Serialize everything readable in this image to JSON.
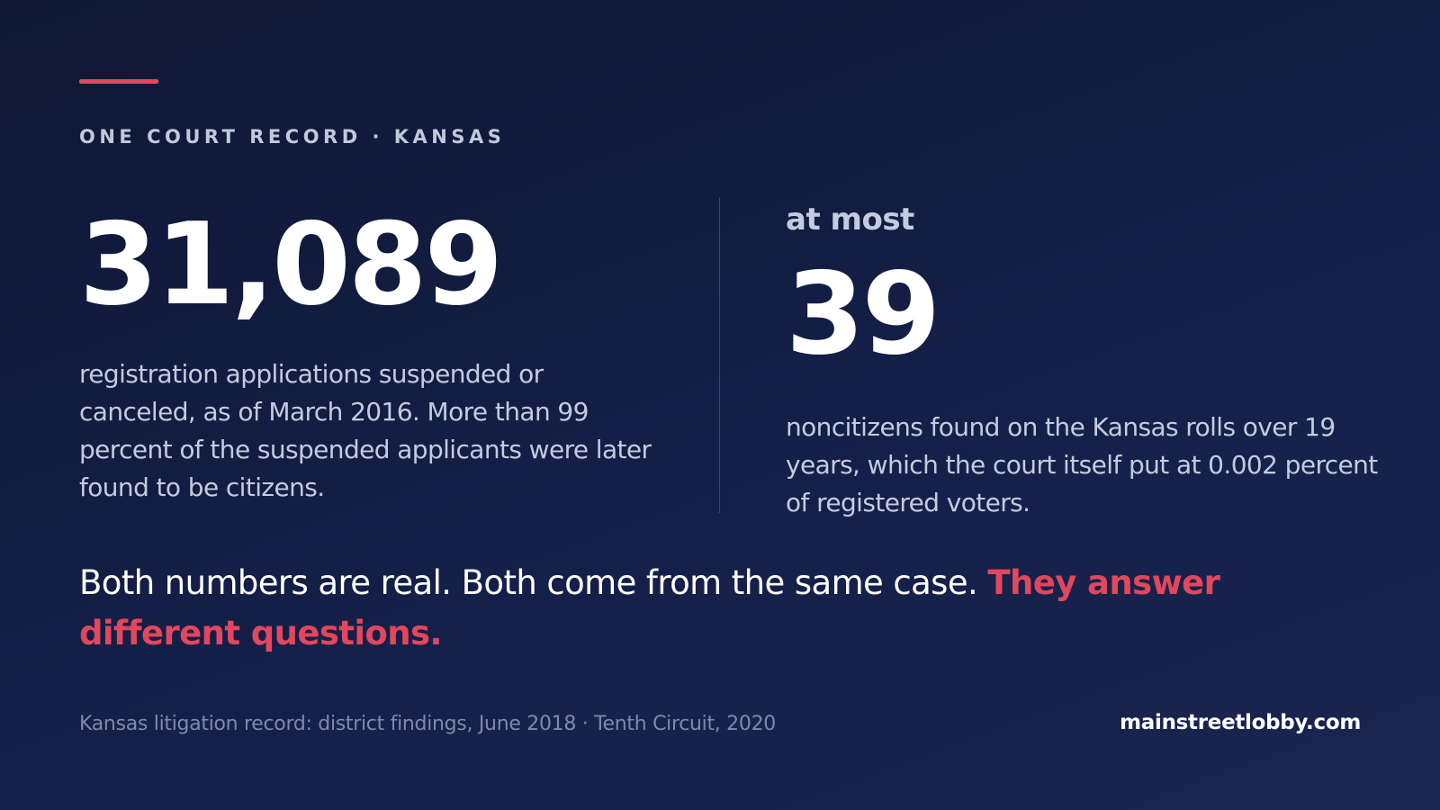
{
  "eyebrow": "ONE COURT RECORD · KANSAS",
  "colors": {
    "background": "#131c40",
    "accent": "#e2475d",
    "text_primary": "#ffffff",
    "text_secondary": "#c5cbdf",
    "text_muted": "#7f89a8"
  },
  "left_stat": {
    "number": "31,089",
    "description": "registration applications suspended or canceled, as of March 2016. More than 99 percent of the suspended applicants were later found to be citizens."
  },
  "right_stat": {
    "qualifier": "at most",
    "number": "39",
    "description": "noncitizens found on the Kansas rolls over 19 years, which the court itself put at 0.002 percent of registered voters."
  },
  "conclusion": {
    "text": "Both numbers are real. Both come from the same case. ",
    "highlight": "They answer different questions."
  },
  "footer": {
    "source": "Kansas litigation record: district findings, June 2018 · Tenth Circuit, 2020",
    "brand": "mainstreetlobby.com"
  }
}
